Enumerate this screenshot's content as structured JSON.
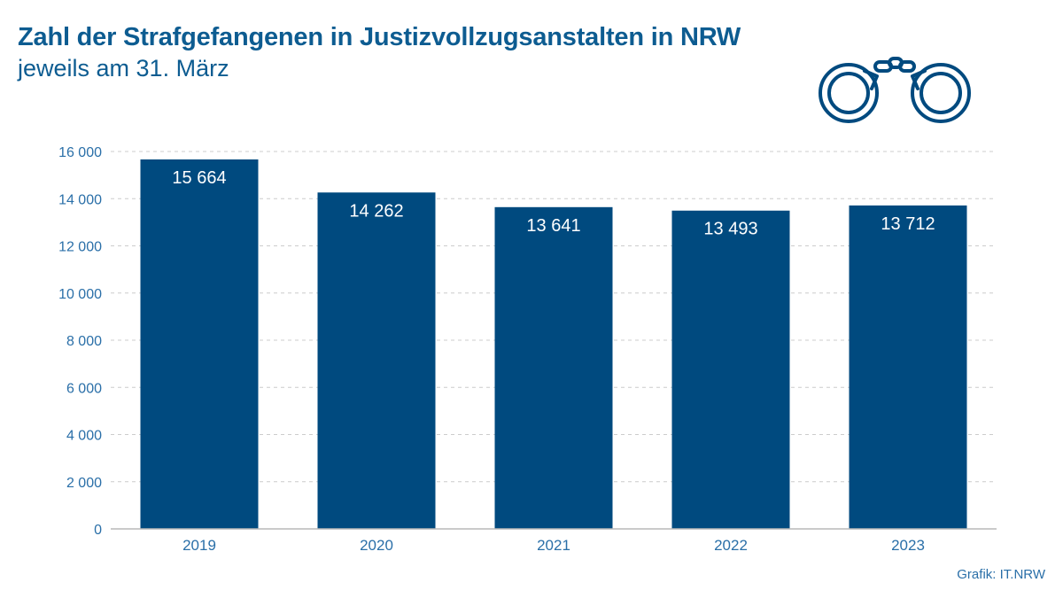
{
  "header": {
    "title": "Zahl der Strafgefangenen in Justizvollzugsanstalten in NRW",
    "subtitle": "jeweils am 31. März"
  },
  "footer": {
    "source": "Grafik: IT.NRW"
  },
  "icon": "handcuffs-icon",
  "colors": {
    "bar": "#004a7f",
    "text": "#0d5c91",
    "axis_text": "#2a6fa8",
    "grid": "#cccccc"
  },
  "chart_data": {
    "type": "bar",
    "categories": [
      "2019",
      "2020",
      "2021",
      "2022",
      "2023"
    ],
    "values": [
      15664,
      14262,
      13641,
      13493,
      13712
    ],
    "value_labels": [
      "15 664",
      "14 262",
      "13 641",
      "13 493",
      "13 712"
    ],
    "ylim": [
      0,
      16000
    ],
    "yticks": [
      0,
      2000,
      4000,
      6000,
      8000,
      10000,
      12000,
      14000,
      16000
    ],
    "ytick_labels": [
      "0",
      "2 000",
      "4 000",
      "6 000",
      "8 000",
      "10 000",
      "12 000",
      "14 000",
      "16 000"
    ],
    "grid": true,
    "title": "Zahl der Strafgefangenen in Justizvollzugsanstalten in NRW",
    "subtitle": "jeweils am 31. März"
  }
}
